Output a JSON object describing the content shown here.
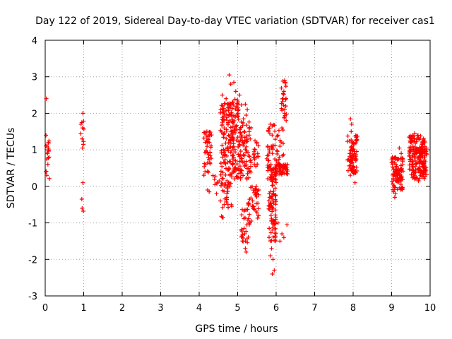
{
  "chart_data": {
    "type": "scatter",
    "title": "Day 122 of 2019, Sidereal Day-to-day VTEC variation (SDTVAR) for receiver cas1",
    "xlabel": "GPS time / hours",
    "ylabel": "SDTVAR / TECUs",
    "xlim": [
      0,
      10
    ],
    "ylim": [
      -3,
      4
    ],
    "xticks": [
      "0",
      "1",
      "2",
      "3",
      "4",
      "5",
      "6",
      "7",
      "8",
      "9",
      "10"
    ],
    "yticks": [
      "-3",
      "-2",
      "-1",
      "0",
      "1",
      "2",
      "3",
      "4"
    ],
    "grid": true,
    "marker": "+",
    "color": "#ff0000",
    "series": [
      {
        "name": "SDTVAR",
        "clusters": [
          {
            "x0": 0.0,
            "x1": 0.12,
            "points": [
              [
                0.03,
                2.4
              ],
              [
                0.02,
                1.4
              ],
              [
                0.05,
                1.1
              ],
              [
                0.08,
                1.2
              ],
              [
                0.06,
                0.9
              ],
              [
                0.04,
                0.75
              ],
              [
                0.02,
                0.4
              ],
              [
                0.04,
                0.3
              ],
              [
                0.07,
                0.6
              ],
              [
                0.1,
                0.8
              ],
              [
                0.09,
                1.0
              ]
            ],
            "min": 0.2,
            "max": 1.3,
            "n": 10
          },
          {
            "x0": 0.92,
            "x1": 1.02,
            "points": [
              [
                0.98,
                2.0
              ],
              [
                0.95,
                1.75
              ],
              [
                0.97,
                1.6
              ],
              [
                0.93,
                1.7
              ],
              [
                0.96,
                1.3
              ],
              [
                0.99,
                1.15
              ],
              [
                0.97,
                1.05
              ],
              [
                0.98,
                0.1
              ],
              [
                0.95,
                -0.35
              ],
              [
                0.96,
                -0.6
              ],
              [
                0.99,
                -0.68
              ]
            ],
            "min": 1.0,
            "max": 1.8,
            "n": 4
          },
          {
            "x0": 4.12,
            "x1": 4.32,
            "points": [
              [
                4.2,
                1.5
              ],
              [
                4.28,
                1.4
              ],
              [
                4.22,
                -0.1
              ],
              [
                4.26,
                -0.15
              ]
            ],
            "min": 0.25,
            "max": 1.5,
            "n": 45
          },
          {
            "x0": 4.35,
            "x1": 4.62,
            "points": [
              [
                4.45,
                -0.2
              ],
              [
                4.55,
                -0.4
              ],
              [
                4.6,
                -0.85
              ]
            ],
            "min": 0.0,
            "max": 0.35,
            "n": 12
          },
          {
            "x0": 4.55,
            "x1": 4.9,
            "points": [
              [
                4.78,
                3.05
              ],
              [
                4.82,
                2.8
              ],
              [
                4.6,
                2.5
              ],
              [
                4.7,
                2.4
              ],
              [
                4.56,
                2.1
              ]
            ],
            "min": 0.3,
            "max": 2.3,
            "n": 130
          },
          {
            "x0": 4.6,
            "x1": 4.85,
            "points": [
              [
                4.65,
                -0.5
              ],
              [
                4.62,
                -0.85
              ],
              [
                4.58,
                -0.82
              ],
              [
                4.72,
                -0.3
              ],
              [
                4.8,
                0.0
              ]
            ],
            "min": -0.6,
            "max": 0.3,
            "n": 25
          },
          {
            "x0": 4.85,
            "x1": 5.1,
            "points": [
              [
                4.9,
                2.85
              ],
              [
                4.95,
                2.6
              ],
              [
                5.05,
                2.5
              ],
              [
                4.88,
                2.3
              ]
            ],
            "min": 0.2,
            "max": 2.4,
            "n": 75
          },
          {
            "x0": 5.05,
            "x1": 5.35,
            "points": [
              [
                5.2,
                2.25
              ],
              [
                5.25,
                2.1
              ],
              [
                5.22,
                1.95
              ],
              [
                5.15,
                1.85
              ],
              [
                5.3,
                1.5
              ]
            ],
            "min": 0.2,
            "max": 1.8,
            "n": 70
          },
          {
            "x0": 5.1,
            "x1": 5.3,
            "points": [
              [
                5.18,
                -1.3
              ],
              [
                5.2,
                -1.5
              ],
              [
                5.22,
                -1.8
              ],
              [
                5.2,
                -1.7
              ]
            ],
            "min": -1.6,
            "max": -0.6,
            "n": 25
          },
          {
            "x0": 5.25,
            "x1": 5.55,
            "points": [
              [
                5.3,
                -1.05
              ],
              [
                5.35,
                -0.95
              ],
              [
                5.42,
                -0.55
              ],
              [
                5.5,
                -0.2
              ],
              [
                5.55,
                -0.1
              ]
            ],
            "min": -1.0,
            "max": 0.0,
            "n": 35
          },
          {
            "x0": 5.4,
            "x1": 5.55,
            "points": [
              [
                5.45,
                1.0
              ],
              [
                5.5,
                1.2
              ],
              [
                5.48,
                0.8
              ],
              [
                5.52,
                0.9
              ]
            ],
            "min": 0.5,
            "max": 1.3,
            "n": 15
          },
          {
            "x0": 5.75,
            "x1": 5.98,
            "points": [
              [
                5.85,
                1.7
              ],
              [
                5.8,
                1.5
              ],
              [
                5.78,
                1.1
              ],
              [
                5.82,
                1.0
              ],
              [
                5.9,
                0.9
              ]
            ],
            "min": 0.1,
            "max": 1.7,
            "n": 40
          },
          {
            "x0": 5.8,
            "x1": 6.0,
            "points": [
              [
                5.88,
                -1.7
              ],
              [
                5.92,
                -2.0
              ],
              [
                5.95,
                -2.3
              ],
              [
                5.9,
                -2.4
              ],
              [
                5.85,
                -1.9
              ],
              [
                5.98,
                -1.5
              ]
            ],
            "min": -1.5,
            "max": 0.6,
            "n": 90
          },
          {
            "x0": 5.95,
            "x1": 6.3,
            "points": [
              [
                6.05,
                -1.0
              ],
              [
                6.15,
                -1.3
              ],
              [
                6.2,
                -1.4
              ],
              [
                6.28,
                -1.05
              ],
              [
                6.1,
                -1.5
              ]
            ],
            "min": 0.3,
            "max": 0.6,
            "n": 55
          },
          {
            "x0": 6.0,
            "x1": 6.2,
            "points": [
              [
                6.05,
                1.4
              ],
              [
                6.1,
                1.1
              ],
              [
                6.15,
                1.6
              ],
              [
                6.08,
                0.8
              ]
            ],
            "min": 0.6,
            "max": 1.6,
            "n": 15
          },
          {
            "x0": 6.12,
            "x1": 6.28,
            "points": [
              [
                6.22,
                2.9
              ],
              [
                6.24,
                2.85
              ],
              [
                6.2,
                2.6
              ],
              [
                6.18,
                2.4
              ],
              [
                6.25,
                2.2
              ],
              [
                6.22,
                2.0
              ],
              [
                6.26,
                1.8
              ]
            ],
            "min": 1.8,
            "max": 2.9,
            "n": 20
          },
          {
            "x0": 7.85,
            "x1": 8.12,
            "points": [
              [
                7.93,
                1.85
              ],
              [
                7.96,
                1.7
              ],
              [
                7.95,
                1.5
              ],
              [
                8.0,
                0.5
              ],
              [
                8.05,
                0.1
              ]
            ],
            "min": 0.3,
            "max": 1.4,
            "n": 80
          },
          {
            "x0": 9.0,
            "x1": 9.3,
            "points": [
              [
                9.02,
                0.8
              ],
              [
                9.2,
                1.05
              ],
              [
                9.25,
                0.9
              ],
              [
                9.1,
                -0.2
              ],
              [
                9.08,
                -0.3
              ],
              [
                9.05,
                -0.15
              ]
            ],
            "min": -0.1,
            "max": 0.8,
            "n": 100
          },
          {
            "x0": 9.45,
            "x1": 9.88,
            "points": [
              [
                9.6,
                1.45
              ],
              [
                9.55,
                1.4
              ],
              [
                9.5,
                1.3
              ],
              [
                9.6,
                0.2
              ],
              [
                9.7,
                0.15
              ]
            ],
            "min": 0.2,
            "max": 1.4,
            "n": 160
          },
          {
            "x0": 9.72,
            "x1": 9.92,
            "points": [
              [
                9.8,
                1.15
              ],
              [
                9.86,
                1.2
              ],
              [
                9.9,
                0.95
              ],
              [
                9.75,
                0.3
              ],
              [
                9.88,
                0.4
              ]
            ],
            "min": 0.3,
            "max": 1.1,
            "n": 40
          }
        ]
      }
    ]
  }
}
